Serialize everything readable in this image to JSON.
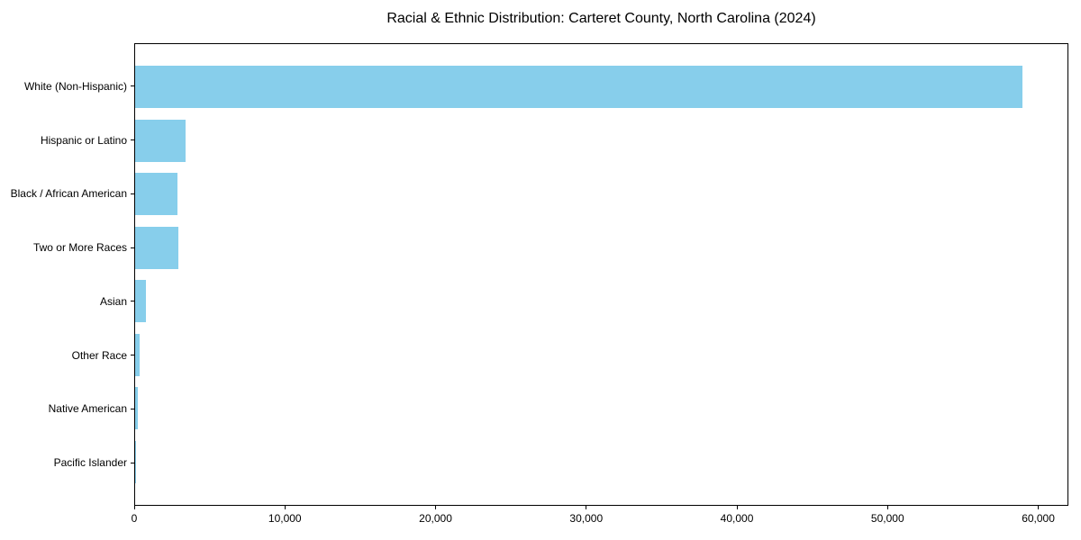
{
  "chart_data": {
    "type": "bar",
    "orientation": "horizontal",
    "title": "Racial & Ethnic Distribution: Carteret County, North Carolina (2024)",
    "xlabel": "",
    "ylabel": "",
    "categories": [
      "White (Non-Hispanic)",
      "Hispanic or Latino",
      "Black / African American",
      "Two or More Races",
      "Asian",
      "Other Race",
      "Native American",
      "Pacific Islander"
    ],
    "values": [
      59000,
      3350,
      2800,
      2850,
      720,
      300,
      150,
      30
    ],
    "xlim": [
      0,
      62000
    ],
    "x_ticks": [
      0,
      10000,
      20000,
      30000,
      40000,
      50000,
      60000
    ],
    "x_tick_labels": [
      "0",
      "10,000",
      "20,000",
      "30,000",
      "40,000",
      "50,000",
      "60,000"
    ],
    "grid": false,
    "legend": null,
    "bar_color": "#87CEEB",
    "axis_color": "#000000",
    "background_color": "#FFFFFF"
  }
}
